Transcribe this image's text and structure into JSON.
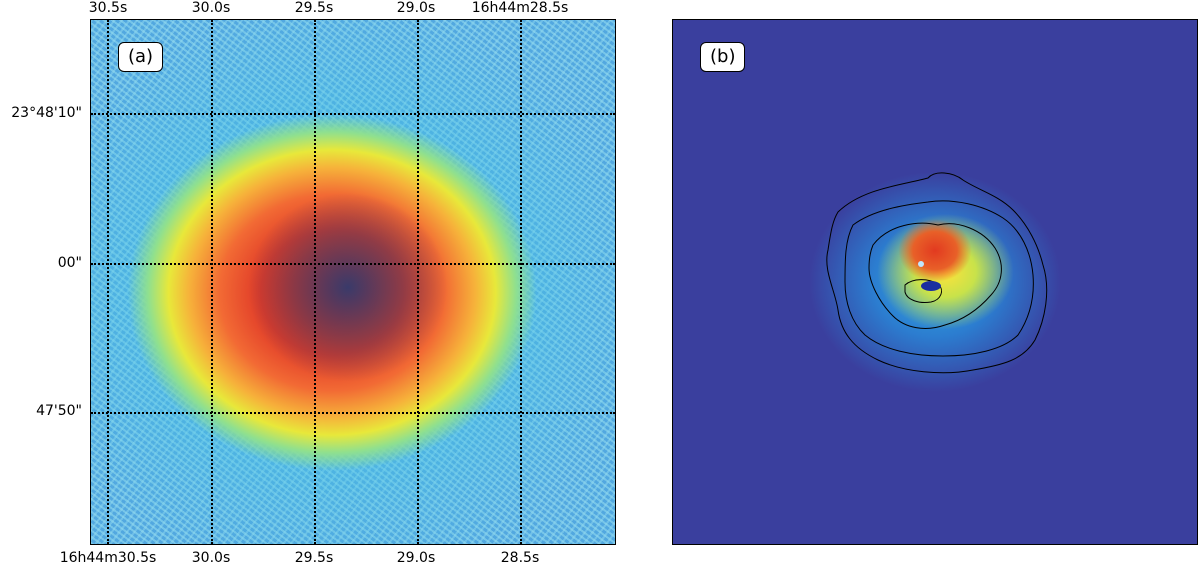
{
  "panels": {
    "a": {
      "label": "(a)"
    },
    "b": {
      "label": "(b)"
    }
  },
  "axes_a": {
    "top_ticks": [
      "30.5s",
      "30.0s",
      "29.5s",
      "29.0s",
      "16h44m28.5s"
    ],
    "bottom_ticks": [
      "16h44m30.5s",
      "30.0s",
      "29.5s",
      "29.0s",
      "28.5s"
    ],
    "left_ticks": [
      "23°48'10\"",
      "00\"",
      "47'50\""
    ]
  },
  "colors": {
    "colormap": "jet",
    "contour": "#000000",
    "background_b": "#3a3f9e"
  }
}
